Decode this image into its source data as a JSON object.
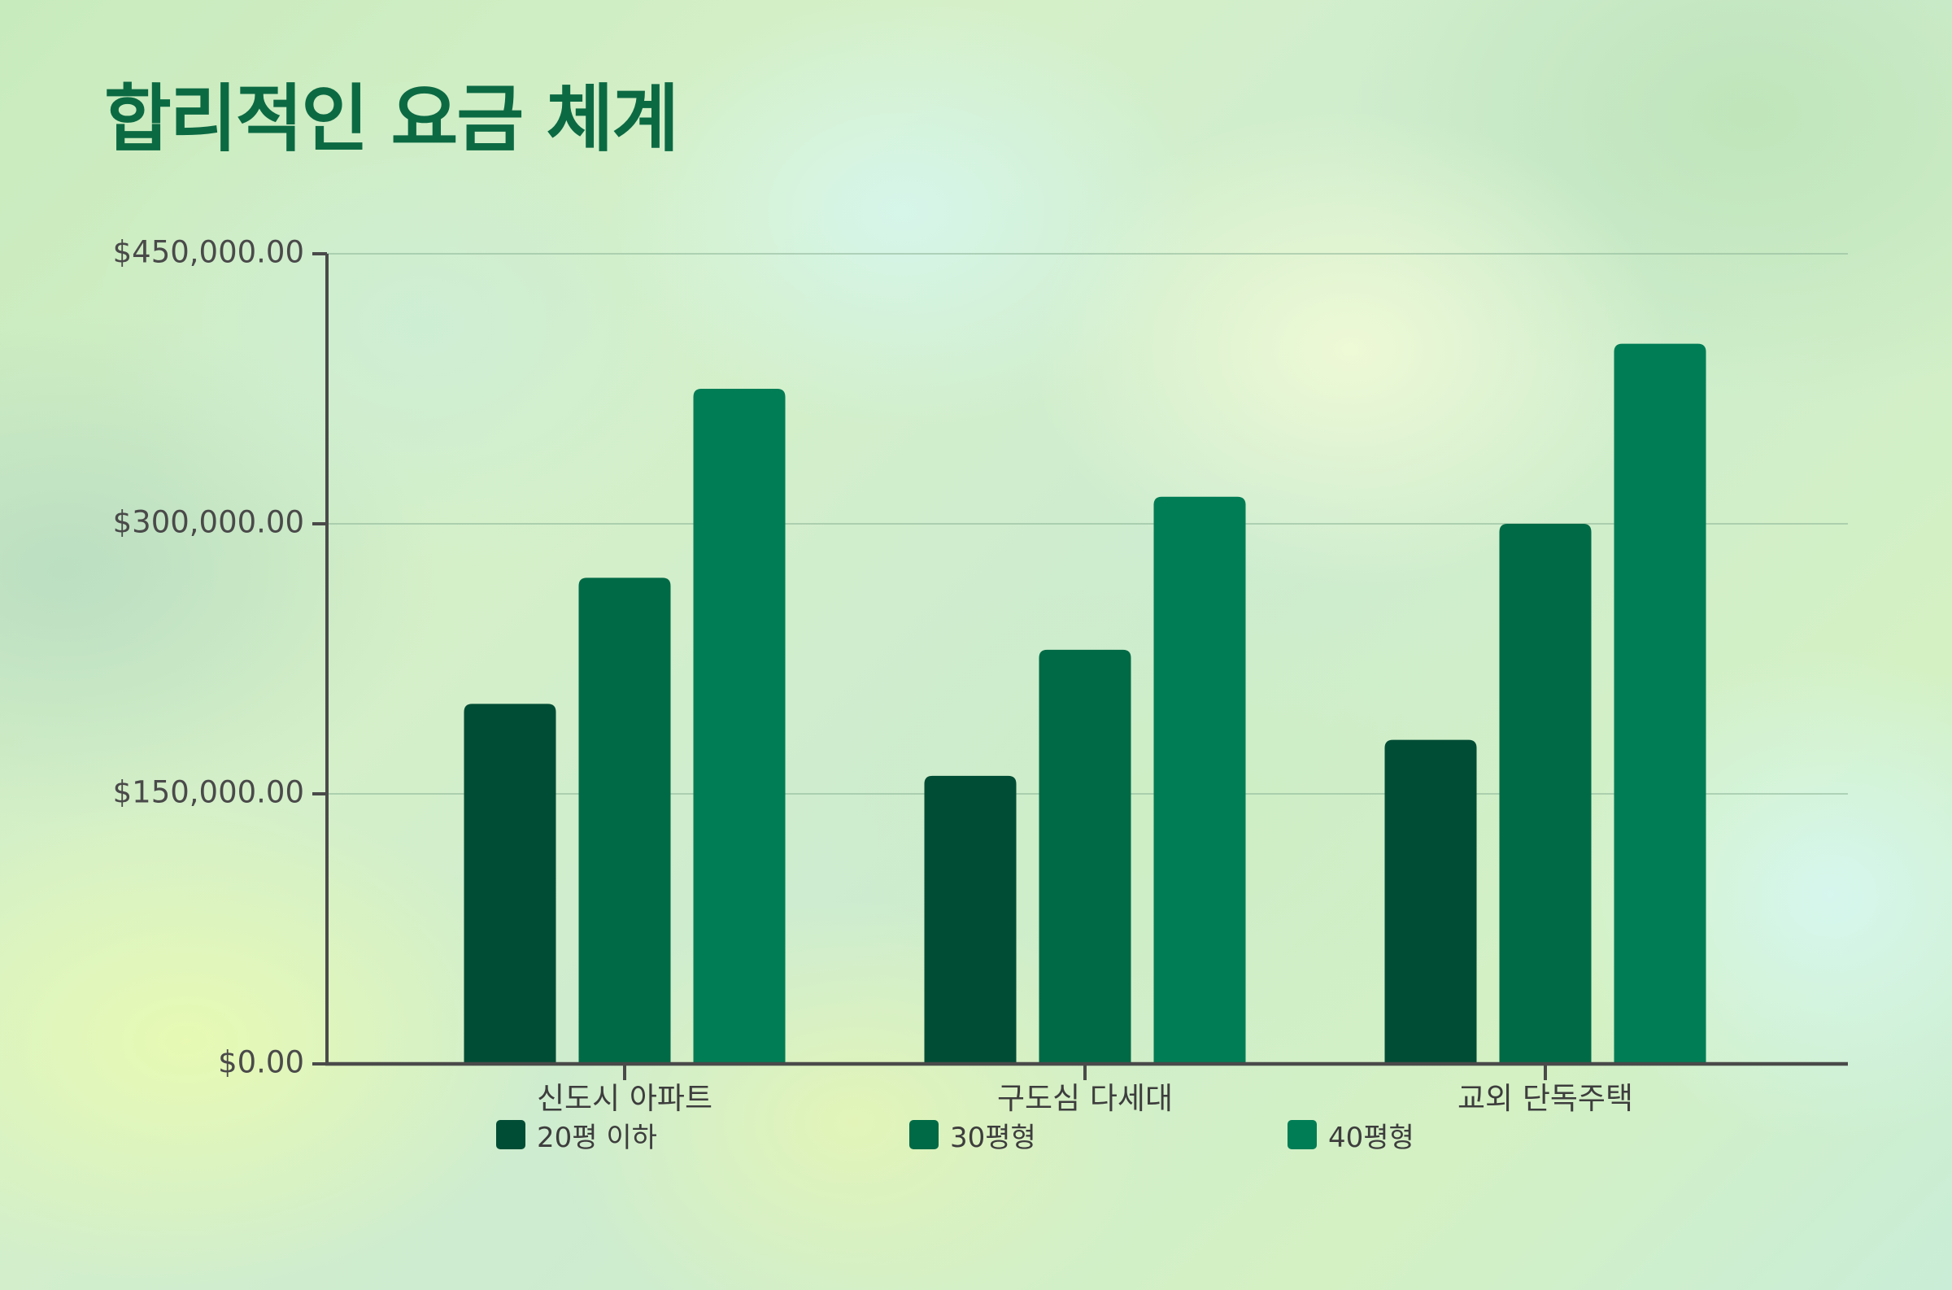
{
  "chart_data": {
    "type": "bar",
    "title": "합리적인 요금 체계",
    "categories": [
      "신도시 아파트",
      "구도심 다세대",
      "교외 단독주택"
    ],
    "series": [
      {
        "name": "20평 이하",
        "color": "#004d35",
        "values": [
          200000,
          160000,
          180000
        ]
      },
      {
        "name": "30평형",
        "color": "#006a46",
        "values": [
          270000,
          230000,
          300000
        ]
      },
      {
        "name": "40평형",
        "color": "#007d55",
        "values": [
          375000,
          315000,
          400000
        ]
      }
    ],
    "xlabel": "",
    "ylabel": "",
    "ylim": [
      0,
      450000
    ],
    "yticks": [
      0,
      150000,
      300000,
      450000
    ],
    "ytick_labels": [
      "$0.00",
      "$150,000.00",
      "$300,000.00",
      "$450,000.00"
    ],
    "grid": true,
    "legend_position": "bottom"
  }
}
